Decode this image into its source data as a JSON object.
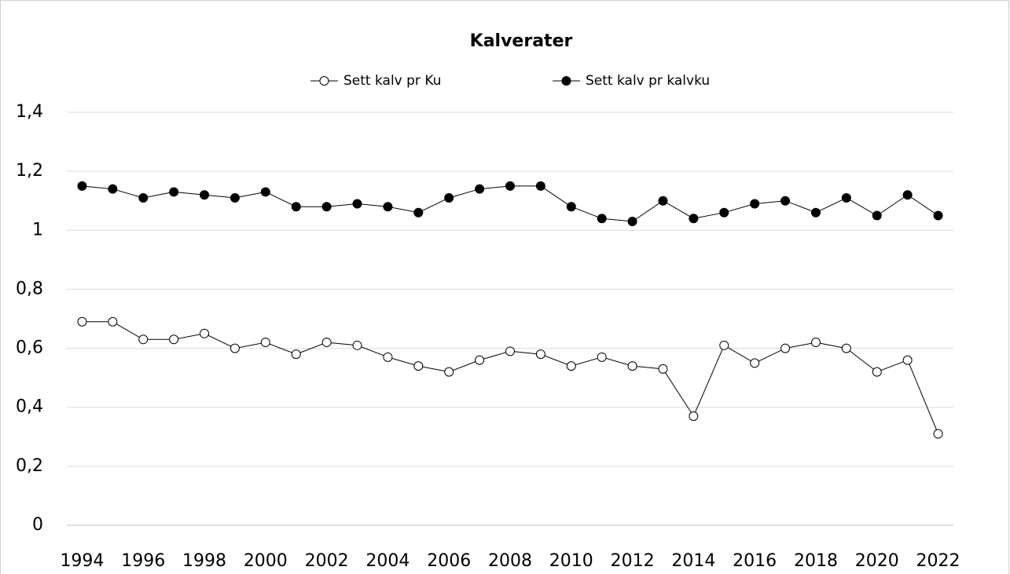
{
  "chart_data": {
    "type": "line",
    "title": "Kalverater",
    "categories": [
      1994,
      null,
      1996,
      null,
      1998,
      null,
      2000,
      null,
      2002,
      null,
      2004,
      null,
      2006,
      null,
      2008,
      null,
      2010,
      null,
      2012,
      null,
      2014,
      null,
      2016,
      null,
      2018,
      null,
      2020,
      null,
      2022
    ],
    "series": [
      {
        "name": "Sett kalv pr Ku",
        "color": "#000000",
        "marker_fill": "#ffffff",
        "values": [
          0.69,
          0.69,
          0.63,
          0.63,
          0.65,
          0.6,
          0.62,
          0.58,
          0.62,
          0.61,
          0.57,
          0.54,
          0.52,
          0.56,
          0.59,
          0.58,
          0.54,
          0.57,
          0.54,
          0.53,
          0.37,
          0.61,
          0.55,
          0.6,
          0.62,
          0.6,
          0.52,
          0.56,
          0.31
        ]
      },
      {
        "name": "Sett kalv pr kalvku",
        "color": "#000000",
        "marker_fill": "#000000",
        "values": [
          1.15,
          1.14,
          1.11,
          1.13,
          1.12,
          1.11,
          1.13,
          1.08,
          1.08,
          1.09,
          1.08,
          1.06,
          1.11,
          1.14,
          1.15,
          1.15,
          1.08,
          1.04,
          1.03,
          1.1,
          1.04,
          1.06,
          1.09,
          1.1,
          1.06,
          1.11,
          1.05,
          1.12,
          1.05
        ]
      }
    ],
    "ylim": [
      0,
      1.4
    ],
    "yticks": [
      0,
      {
        "value": 0.2,
        "label": "0,2"
      },
      {
        "value": 0.4,
        "label": "0,4"
      },
      {
        "value": 0.6,
        "label": "0,6"
      },
      {
        "value": 0.8,
        "label": "0,8"
      },
      1,
      {
        "value": 1.2,
        "label": "1,2"
      },
      {
        "value": 1.4,
        "label": "1,4"
      }
    ],
    "grid": true,
    "legend": "top"
  }
}
